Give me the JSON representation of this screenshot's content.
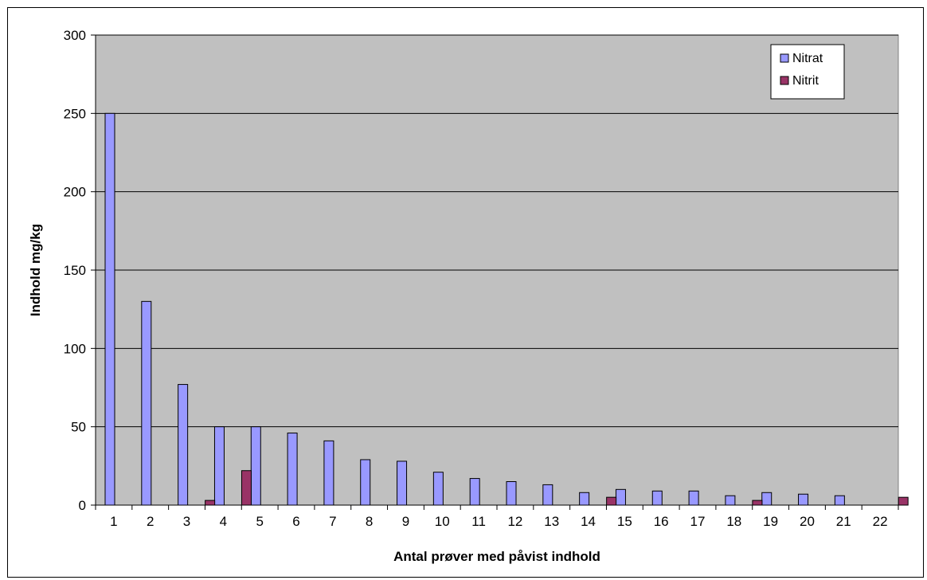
{
  "chart_data": {
    "type": "bar",
    "title": "",
    "xlabel": "Antal prøver med påvist indhold",
    "ylabel": "Indhold mg/kg",
    "ylim": [
      0,
      300
    ],
    "yticks": [
      "0",
      "50",
      "100",
      "150",
      "200",
      "250",
      "300"
    ],
    "categories": [
      "1",
      "2",
      "3",
      "4",
      "5",
      "6",
      "7",
      "8",
      "9",
      "10",
      "11",
      "12",
      "13",
      "14",
      "15",
      "16",
      "17",
      "18",
      "19",
      "20",
      "21",
      "22"
    ],
    "series": [
      {
        "name": "Nitrat",
        "color": "#9999ff",
        "values": [
          250,
          130,
          77,
          50,
          50,
          46,
          41,
          29,
          28,
          21,
          17,
          15,
          13,
          8,
          10,
          9,
          9,
          6,
          8,
          7,
          6,
          0
        ]
      },
      {
        "name": "Nitrit",
        "color": "#993366",
        "values": [
          0,
          0,
          3,
          22,
          0,
          0,
          0,
          0,
          0,
          0,
          0,
          0,
          0,
          5,
          0,
          0,
          0,
          3,
          0,
          0,
          0,
          5
        ]
      }
    ],
    "plot_background": "#c0c0c0",
    "grid": true,
    "legend_position": "top-right"
  }
}
